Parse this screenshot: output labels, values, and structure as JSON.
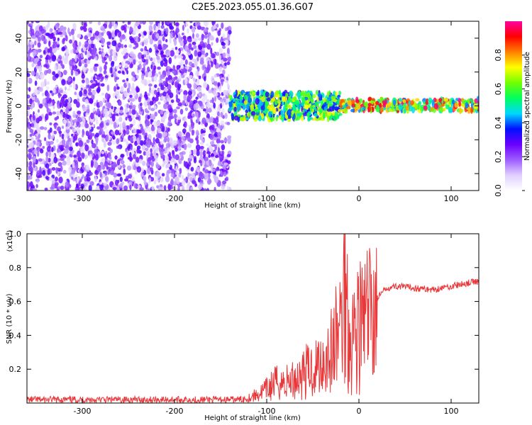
{
  "title": "C2E5.2023.055.01.36.G07",
  "colors": {
    "snr_line": "#e8383a",
    "axis": "#000000"
  },
  "colorbar": {
    "label": "Normalized spectral amplitude",
    "range": [
      0.0,
      1.0
    ],
    "ticks": [
      "0.0",
      "0.2",
      "0.4",
      "0.6",
      "0.8"
    ],
    "tick_values": [
      0.0,
      0.2,
      0.4,
      0.6,
      0.8
    ],
    "colormap": [
      "#ffffff",
      "#e0d0ff",
      "#9d5cff",
      "#6a00ff",
      "#0010ff",
      "#00d8ff",
      "#00ff60",
      "#70ff00",
      "#ffff00",
      "#ff8000",
      "#ff0000",
      "#ff00a0"
    ]
  },
  "chart_data": [
    {
      "type": "heatmap",
      "xlabel": "Height of straight line (km)",
      "ylabel": "Frequency (Hz)",
      "xlim": [
        -360,
        130
      ],
      "ylim": [
        -50,
        50
      ],
      "xticks": [
        -300,
        -200,
        -100,
        0,
        100
      ],
      "xtick_labels": [
        "-300",
        "-200",
        "-100",
        "0",
        "100"
      ],
      "yticks": [
        -40,
        -20,
        0,
        20,
        40
      ],
      "ytick_labels": [
        "-40",
        "-20",
        "0",
        "20",
        "40"
      ],
      "description_regions": [
        {
          "x": [
            -360,
            -140
          ],
          "y": [
            -50,
            50
          ],
          "amplitude": [
            0.05,
            0.3
          ]
        },
        {
          "x": [
            -140,
            -20
          ],
          "y": [
            -8,
            8
          ],
          "amplitude": [
            0.3,
            0.75
          ]
        },
        {
          "x": [
            -20,
            130
          ],
          "y": [
            -3,
            4
          ],
          "amplitude": [
            0.4,
            1.0
          ]
        }
      ]
    },
    {
      "type": "line",
      "xlabel": "Height of straight line (km)",
      "ylabel": "SNR (10 * v/v)",
      "y_multiplier": "(x10",
      "y_multiplier_exp": "4",
      "y_multiplier_close": ")",
      "xlim": [
        -360,
        130
      ],
      "ylim": [
        0.0,
        1.0
      ],
      "xticks": [
        -300,
        -200,
        -100,
        0,
        100
      ],
      "xtick_labels": [
        "-300",
        "-200",
        "-100",
        "0",
        "100"
      ],
      "yticks": [
        0.2,
        0.4,
        0.6,
        0.8,
        1.0
      ],
      "ytick_labels": [
        "0.2",
        "0.4",
        "0.6",
        "0.8",
        "1.0"
      ],
      "series": [
        {
          "x": [
            -360,
            -340,
            -300,
            -250,
            -200,
            -150,
            -130,
            -120,
            -110,
            -100,
            -90,
            -80,
            -70,
            -60,
            -50,
            -40,
            -30,
            -20,
            -15,
            -10,
            0,
            10,
            20,
            30,
            40,
            60,
            80,
            100,
            120,
            130
          ],
          "y": [
            0.02,
            0.02,
            0.02,
            0.02,
            0.02,
            0.02,
            0.02,
            0.03,
            0.05,
            0.08,
            0.12,
            0.12,
            0.14,
            0.18,
            0.2,
            0.25,
            0.3,
            0.45,
            0.7,
            0.4,
            0.45,
            0.5,
            0.62,
            0.68,
            0.69,
            0.68,
            0.67,
            0.69,
            0.71,
            0.72
          ]
        }
      ]
    }
  ]
}
